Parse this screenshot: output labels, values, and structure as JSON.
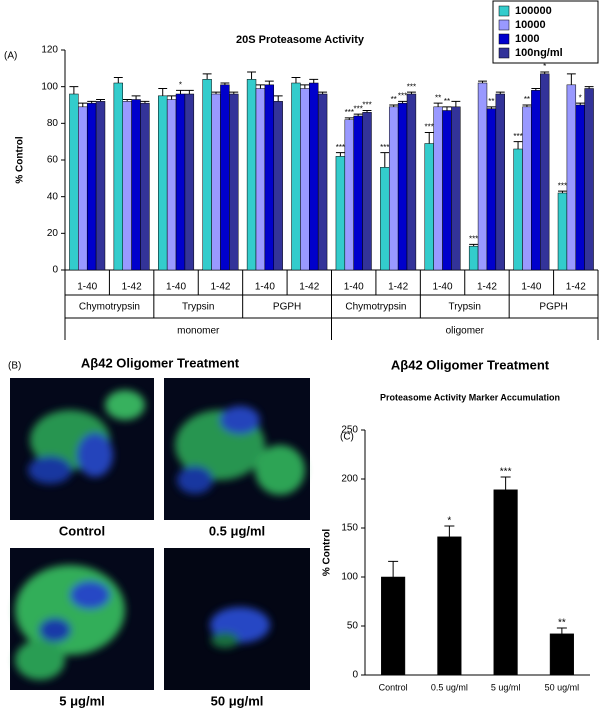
{
  "chart_data": [
    {
      "type": "bar",
      "panel": "(A)",
      "title": "20S Proteasome Activity",
      "y_label": "% Control",
      "categories": [
        "1-40",
        "1-42",
        "1-40",
        "1-42",
        "1-40",
        "1-42",
        "1-40",
        "1-42",
        "1-40",
        "1-42",
        "1-40",
        "1-42"
      ],
      "groups": [
        "Chymotrypsin",
        "Trypsin",
        "PGPH",
        "Chymotrypsin",
        "Trypsin",
        "PGPH"
      ],
      "supergroups": [
        "monomer",
        "oligomer"
      ],
      "series": [
        {
          "name": "100000",
          "color": "#33cccc",
          "values": [
            96,
            102,
            95,
            104,
            104,
            102,
            62,
            56,
            69,
            13,
            66,
            42
          ],
          "errors": [
            4,
            3,
            4,
            3,
            4,
            3,
            2,
            8,
            6,
            1,
            4,
            1
          ],
          "annotations": [
            null,
            null,
            null,
            null,
            null,
            null,
            "***",
            "***",
            "***",
            "***",
            "***",
            "***"
          ]
        },
        {
          "name": "10000",
          "color": "#9999ff",
          "values": [
            89,
            92,
            93,
            96,
            99,
            99,
            82,
            89,
            89,
            102,
            89,
            101
          ],
          "errors": [
            2,
            1,
            2,
            1,
            2,
            2,
            1,
            1,
            2,
            1,
            1,
            6
          ],
          "annotations": [
            null,
            null,
            null,
            null,
            null,
            null,
            "***",
            "**",
            "**",
            null,
            "**",
            null
          ]
        },
        {
          "name": "1000",
          "color": "#0000cc",
          "values": [
            91,
            93,
            96,
            101,
            101,
            102,
            84,
            91,
            87,
            88,
            98,
            90
          ],
          "errors": [
            1,
            2,
            2,
            1,
            2,
            2,
            1,
            1,
            2,
            1,
            1,
            1
          ],
          "annotations": [
            null,
            null,
            "*",
            null,
            null,
            null,
            "***",
            "***",
            "**",
            "**",
            null,
            "*"
          ]
        },
        {
          "name": "100ng/ml",
          "color": "#333399",
          "values": [
            92,
            91,
            96,
            96,
            92,
            96,
            86,
            96,
            89,
            96,
            107,
            99
          ],
          "errors": [
            1,
            1,
            2,
            1,
            3,
            1,
            1,
            1,
            3,
            1,
            1,
            1
          ],
          "annotations": [
            null,
            null,
            null,
            null,
            null,
            null,
            "***",
            "***",
            null,
            null,
            "*",
            null
          ]
        }
      ],
      "ylim": [
        0,
        120
      ],
      "yticks": [
        0,
        20,
        40,
        60,
        80,
        100,
        120
      ],
      "grid": false,
      "legend": "top-right"
    },
    {
      "type": "bar",
      "panel": "(C)",
      "title": "Aβ42 Oligomer Treatment",
      "subtitle": "Proteasome Activity Marker Accumulation",
      "y_label": "% Control",
      "categories": [
        "Control",
        "0.5 ug/ml",
        "5 ug/ml",
        "50 ug/ml"
      ],
      "values": [
        100,
        141,
        189,
        42
      ],
      "errors": [
        16,
        11,
        13,
        6
      ],
      "annotations": [
        null,
        "*",
        "***",
        "**"
      ],
      "color": "#000000",
      "ylim": [
        0,
        250
      ],
      "yticks": [
        0,
        50,
        100,
        150,
        200,
        250
      ],
      "grid": false
    }
  ],
  "panel_b": {
    "label": "(B)",
    "title": "Aβ42 Oligomer Treatment",
    "captions": [
      "Control",
      "0.5 μg/ml",
      "5 μg/ml",
      "50 μg/ml"
    ]
  }
}
